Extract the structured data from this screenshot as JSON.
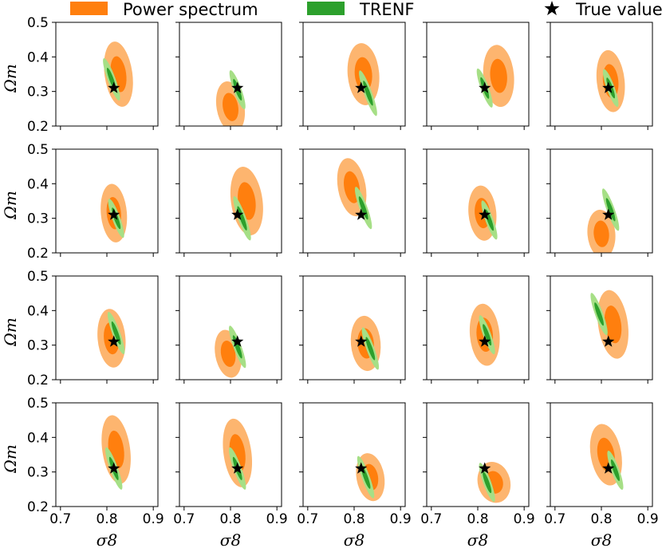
{
  "legend": {
    "items": [
      {
        "label": "Power spectrum",
        "type": "patch",
        "color": "#ff7f0e"
      },
      {
        "label": "TRENF",
        "type": "patch",
        "color": "#2ca02c"
      },
      {
        "label": "True value",
        "type": "star",
        "color": "#000000"
      }
    ]
  },
  "colors": {
    "power_inner": "#ff7f0e",
    "power_outer": "#fdb56f",
    "trenf_inner": "#2ca02c",
    "trenf_outer": "#a6df86",
    "star": "#000000"
  },
  "chart_data": {
    "type": "contour-grid",
    "rows": 4,
    "cols": 5,
    "xlabel": "σ8",
    "ylabel": "Ωm",
    "xlim": [
      0.69,
      0.91
    ],
    "ylim": [
      0.2,
      0.5
    ],
    "xticks": [
      0.7,
      0.8,
      0.9
    ],
    "xtick_labels": [
      "0.7",
      "0.8",
      "0.9"
    ],
    "yticks": [
      0.2,
      0.3,
      0.4,
      0.5
    ],
    "ytick_labels": [
      "0.2",
      "0.3",
      "0.4",
      "0.5"
    ],
    "true_value": {
      "sigma8": 0.815,
      "omega_m": 0.31
    },
    "panels": [
      {
        "power": {
          "cx": 0.825,
          "cy": 0.35,
          "sx": 0.03,
          "sy": 0.095,
          "ang": -8
        },
        "trenf": {
          "cx": 0.81,
          "cy": 0.335,
          "sx": 0.0085,
          "sy": 0.065,
          "ang": -20
        }
      },
      {
        "power": {
          "cx": 0.8,
          "cy": 0.255,
          "sx": 0.03,
          "sy": 0.075,
          "ang": -10
        },
        "trenf": {
          "cx": 0.815,
          "cy": 0.305,
          "sx": 0.0085,
          "sy": 0.06,
          "ang": -20
        }
      },
      {
        "power": {
          "cx": 0.82,
          "cy": 0.35,
          "sx": 0.034,
          "sy": 0.09,
          "ang": -5
        },
        "trenf": {
          "cx": 0.83,
          "cy": 0.295,
          "sx": 0.0085,
          "sy": 0.07,
          "ang": -20
        }
      },
      {
        "power": {
          "cx": 0.845,
          "cy": 0.345,
          "sx": 0.033,
          "sy": 0.09,
          "ang": -5
        },
        "trenf": {
          "cx": 0.815,
          "cy": 0.31,
          "sx": 0.0085,
          "sy": 0.06,
          "ang": -20
        }
      },
      {
        "power": {
          "cx": 0.82,
          "cy": 0.33,
          "sx": 0.03,
          "sy": 0.09,
          "ang": -6
        },
        "trenf": {
          "cx": 0.82,
          "cy": 0.31,
          "sx": 0.0085,
          "sy": 0.058,
          "ang": -20
        }
      },
      {
        "power": {
          "cx": 0.815,
          "cy": 0.315,
          "sx": 0.028,
          "sy": 0.085,
          "ang": -5
        },
        "trenf": {
          "cx": 0.82,
          "cy": 0.3,
          "sx": 0.0085,
          "sy": 0.06,
          "ang": -20
        }
      },
      {
        "power": {
          "cx": 0.835,
          "cy": 0.35,
          "sx": 0.034,
          "sy": 0.1,
          "ang": -8
        },
        "trenf": {
          "cx": 0.825,
          "cy": 0.3,
          "sx": 0.0085,
          "sy": 0.068,
          "ang": -20
        }
      },
      {
        "power": {
          "cx": 0.795,
          "cy": 0.39,
          "sx": 0.03,
          "sy": 0.085,
          "ang": -10
        },
        "trenf": {
          "cx": 0.82,
          "cy": 0.33,
          "sx": 0.0085,
          "sy": 0.065,
          "ang": -20
        }
      },
      {
        "power": {
          "cx": 0.81,
          "cy": 0.315,
          "sx": 0.03,
          "sy": 0.08,
          "ang": -5
        },
        "trenf": {
          "cx": 0.825,
          "cy": 0.295,
          "sx": 0.0085,
          "sy": 0.06,
          "ang": -20
        }
      },
      {
        "power": {
          "cx": 0.8,
          "cy": 0.255,
          "sx": 0.03,
          "sy": 0.07,
          "ang": -5
        },
        "trenf": {
          "cx": 0.82,
          "cy": 0.325,
          "sx": 0.0085,
          "sy": 0.065,
          "ang": -20
        }
      },
      {
        "power": {
          "cx": 0.81,
          "cy": 0.32,
          "sx": 0.03,
          "sy": 0.085,
          "ang": -5
        },
        "trenf": {
          "cx": 0.82,
          "cy": 0.335,
          "sx": 0.0085,
          "sy": 0.065,
          "ang": -20
        }
      },
      {
        "power": {
          "cx": 0.795,
          "cy": 0.275,
          "sx": 0.028,
          "sy": 0.07,
          "ang": -10
        },
        "trenf": {
          "cx": 0.815,
          "cy": 0.295,
          "sx": 0.0085,
          "sy": 0.065,
          "ang": -20
        }
      },
      {
        "power": {
          "cx": 0.825,
          "cy": 0.305,
          "sx": 0.032,
          "sy": 0.08,
          "ang": -5
        },
        "trenf": {
          "cx": 0.835,
          "cy": 0.29,
          "sx": 0.0085,
          "sy": 0.065,
          "ang": -20
        }
      },
      {
        "power": {
          "cx": 0.815,
          "cy": 0.33,
          "sx": 0.032,
          "sy": 0.09,
          "ang": -5
        },
        "trenf": {
          "cx": 0.82,
          "cy": 0.33,
          "sx": 0.0085,
          "sy": 0.06,
          "ang": -20
        }
      },
      {
        "power": {
          "cx": 0.825,
          "cy": 0.36,
          "sx": 0.032,
          "sy": 0.1,
          "ang": -8
        },
        "trenf": {
          "cx": 0.795,
          "cy": 0.39,
          "sx": 0.0085,
          "sy": 0.065,
          "ang": -20
        }
      },
      {
        "power": {
          "cx": 0.82,
          "cy": 0.365,
          "sx": 0.03,
          "sy": 0.1,
          "ang": -8
        },
        "trenf": {
          "cx": 0.815,
          "cy": 0.31,
          "sx": 0.0085,
          "sy": 0.065,
          "ang": -20
        }
      },
      {
        "power": {
          "cx": 0.815,
          "cy": 0.355,
          "sx": 0.03,
          "sy": 0.1,
          "ang": -8
        },
        "trenf": {
          "cx": 0.815,
          "cy": 0.31,
          "sx": 0.0085,
          "sy": 0.065,
          "ang": -20
        }
      },
      {
        "power": {
          "cx": 0.835,
          "cy": 0.285,
          "sx": 0.03,
          "sy": 0.07,
          "ang": -10
        },
        "trenf": {
          "cx": 0.825,
          "cy": 0.285,
          "sx": 0.0085,
          "sy": 0.065,
          "ang": -20
        }
      },
      {
        "power": {
          "cx": 0.835,
          "cy": 0.27,
          "sx": 0.035,
          "sy": 0.06,
          "ang": -15
        },
        "trenf": {
          "cx": 0.82,
          "cy": 0.27,
          "sx": 0.0085,
          "sy": 0.06,
          "ang": -20
        }
      },
      {
        "power": {
          "cx": 0.81,
          "cy": 0.35,
          "sx": 0.033,
          "sy": 0.09,
          "ang": -10
        },
        "trenf": {
          "cx": 0.83,
          "cy": 0.305,
          "sx": 0.0085,
          "sy": 0.06,
          "ang": -20
        }
      }
    ]
  }
}
